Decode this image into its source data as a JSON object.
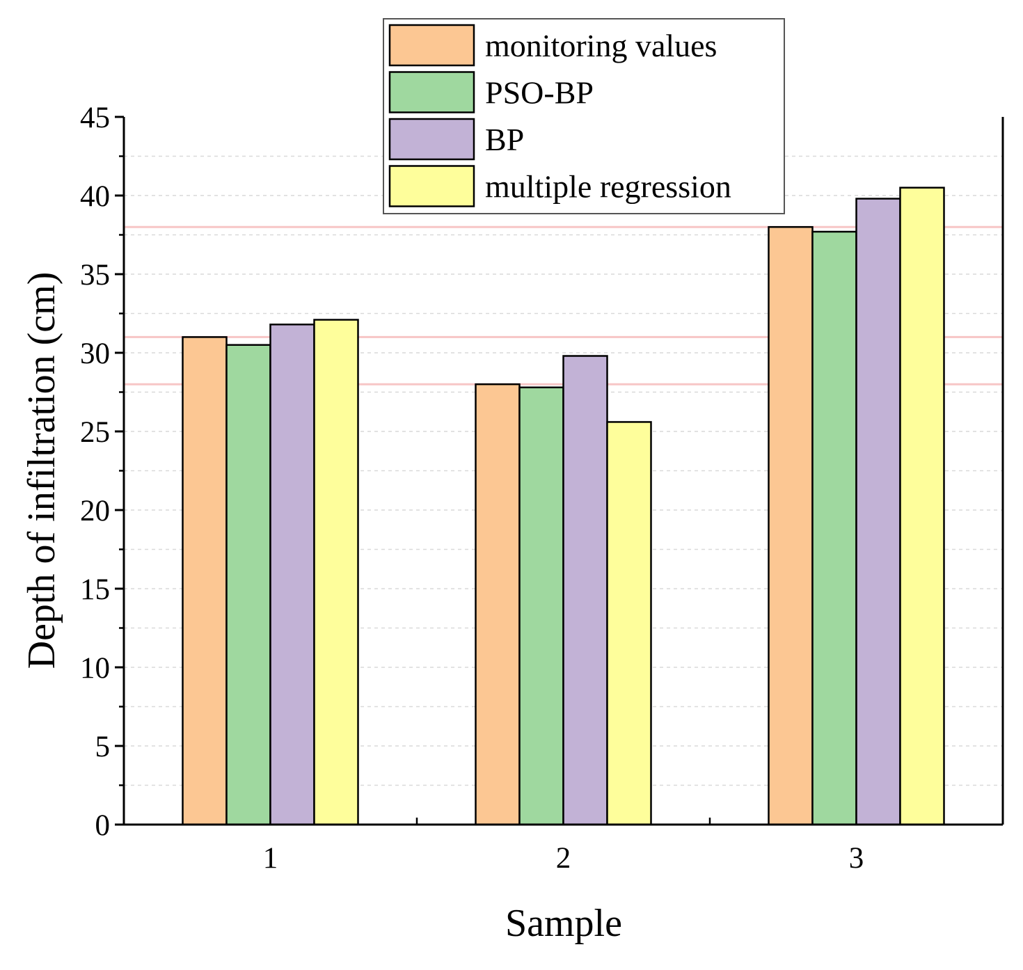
{
  "chart_data": {
    "type": "bar",
    "title": "",
    "xlabel": "Sample",
    "ylabel": "Depth of infiltration (cm)",
    "categories": [
      "1",
      "2",
      "3"
    ],
    "ylim": [
      0,
      45
    ],
    "yticks": [
      0,
      5,
      10,
      15,
      20,
      25,
      30,
      35,
      40,
      45
    ],
    "series": [
      {
        "name": "monitoring values",
        "color": "#fcc793",
        "values": [
          31.0,
          28.0,
          38.0
        ]
      },
      {
        "name": "PSO-BP",
        "color": "#9fd89f",
        "values": [
          30.5,
          27.8,
          37.7
        ]
      },
      {
        "name": "BP",
        "color": "#c2b2d6",
        "values": [
          31.8,
          29.8,
          39.8
        ]
      },
      {
        "name": "multiple regression",
        "color": "#fefe9b",
        "values": [
          32.1,
          25.6,
          40.5
        ]
      }
    ],
    "reference_lines": [
      31,
      28,
      38
    ],
    "reference_line_color": "#f7c6c6",
    "grid": true,
    "legend_position": "top-center"
  }
}
